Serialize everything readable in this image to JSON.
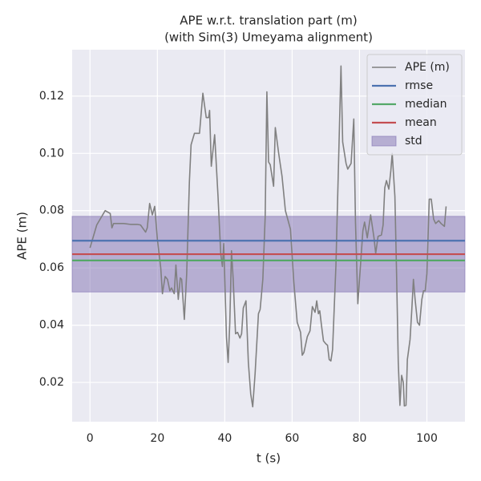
{
  "chart_data": {
    "type": "line",
    "title": [
      "APE w.r.t. translation part (m)",
      "(with Sim(3) Umeyama alignment)"
    ],
    "xlabel": "t (s)",
    "ylabel": "APE (m)",
    "xlim": [
      -5.3,
      111.3
    ],
    "ylim": [
      0.0063,
      0.1362
    ],
    "xticks": [
      0,
      20,
      40,
      60,
      80,
      100
    ],
    "yticks": [
      0.02,
      0.04,
      0.06,
      0.08,
      {
        "value": 0.1,
        "label": "0.10"
      },
      0.12
    ],
    "grid": true,
    "legend": "upper right",
    "x": [
      0,
      1,
      2,
      3,
      4,
      4.5,
      6,
      6.5,
      7,
      10,
      12,
      14,
      15,
      16.5,
      17,
      17.7,
      18.5,
      19.2,
      20,
      21,
      21.5,
      22.3,
      23,
      23.7,
      24.2,
      25,
      25.5,
      26.2,
      26.8,
      27.2,
      28,
      28.7,
      29.5,
      30,
      31,
      32.5,
      33.5,
      34.5,
      35.2,
      35.5,
      36,
      37,
      38,
      38.8,
      39.3,
      39.7,
      40.5,
      41,
      41.5,
      42,
      42.5,
      43.2,
      43.8,
      44.5,
      45,
      45.5,
      46.3,
      47,
      47.7,
      48.3,
      49,
      50,
      50.5,
      51.3,
      52,
      52.5,
      53,
      53.5,
      54.5,
      55,
      56,
      57,
      58,
      59.5,
      60.5,
      61.5,
      62.5,
      63,
      63.5,
      64.5,
      65.3,
      66,
      66.8,
      67.3,
      67.8,
      68.2,
      68.7,
      69.3,
      70,
      70.5,
      71,
      71.5,
      72,
      73,
      73.8,
      74.5,
      75,
      76,
      76.5,
      77.5,
      78.3,
      78.8,
      79.5,
      80,
      81,
      81.5,
      82.3,
      83.3,
      84.3,
      84.8,
      85.5,
      86.5,
      87,
      87.5,
      88,
      88.7,
      89.3,
      89.7,
      90.5,
      91,
      91.5,
      92,
      92.5,
      93,
      93.3,
      93.8,
      94.2,
      95,
      95.5,
      96,
      96.5,
      97.2,
      97.8,
      98.5,
      99,
      99.5,
      100,
      100.7,
      101.3,
      102,
      102.6,
      103.5,
      104.2,
      105.2,
      105.7
    ],
    "series": [
      {
        "name": "APE (m)",
        "color": "#808080",
        "values": [
          0.067,
          0.071,
          0.075,
          0.077,
          0.079,
          0.08,
          0.079,
          0.074,
          0.0755,
          0.0755,
          0.0752,
          0.0752,
          0.075,
          0.0725,
          0.074,
          0.0825,
          0.0785,
          0.0815,
          0.07,
          0.06,
          0.051,
          0.057,
          0.056,
          0.052,
          0.053,
          0.051,
          0.061,
          0.049,
          0.0565,
          0.056,
          0.042,
          0.058,
          0.09,
          0.103,
          0.107,
          0.107,
          0.121,
          0.1125,
          0.1125,
          0.115,
          0.0955,
          0.1065,
          0.085,
          0.065,
          0.0605,
          0.0685,
          0.036,
          0.027,
          0.041,
          0.066,
          0.056,
          0.037,
          0.0375,
          0.0355,
          0.037,
          0.046,
          0.0485,
          0.027,
          0.016,
          0.0115,
          0.023,
          0.044,
          0.0455,
          0.056,
          0.078,
          0.1215,
          0.097,
          0.096,
          0.0885,
          0.109,
          0.1,
          0.092,
          0.08,
          0.0735,
          0.055,
          0.041,
          0.0375,
          0.0295,
          0.0305,
          0.036,
          0.038,
          0.0465,
          0.0445,
          0.0485,
          0.044,
          0.045,
          0.04,
          0.0345,
          0.0335,
          0.033,
          0.028,
          0.0275,
          0.0315,
          0.061,
          0.098,
          0.1305,
          0.104,
          0.0965,
          0.0945,
          0.0965,
          0.112,
          0.076,
          0.0475,
          0.056,
          0.073,
          0.076,
          0.0705,
          0.0785,
          0.0705,
          0.065,
          0.071,
          0.0715,
          0.075,
          0.088,
          0.0905,
          0.0875,
          0.094,
          0.1,
          0.085,
          0.058,
          0.027,
          0.012,
          0.0225,
          0.02,
          0.0118,
          0.012,
          0.028,
          0.035,
          0.045,
          0.056,
          0.049,
          0.041,
          0.04,
          0.049,
          0.052,
          0.052,
          0.058,
          0.084,
          0.084,
          0.077,
          0.0755,
          0.0765,
          0.0755,
          0.0745,
          0.0815
        ]
      }
    ],
    "hlines": [
      {
        "name": "rmse",
        "color": "#4c72b0",
        "value": 0.0695
      },
      {
        "name": "median",
        "color": "#55a868",
        "value": 0.0626
      },
      {
        "name": "mean",
        "color": "#c44e52",
        "value": 0.0648
      }
    ],
    "band": {
      "name": "std",
      "color": "#8172b2",
      "value": 0.0132
    }
  }
}
